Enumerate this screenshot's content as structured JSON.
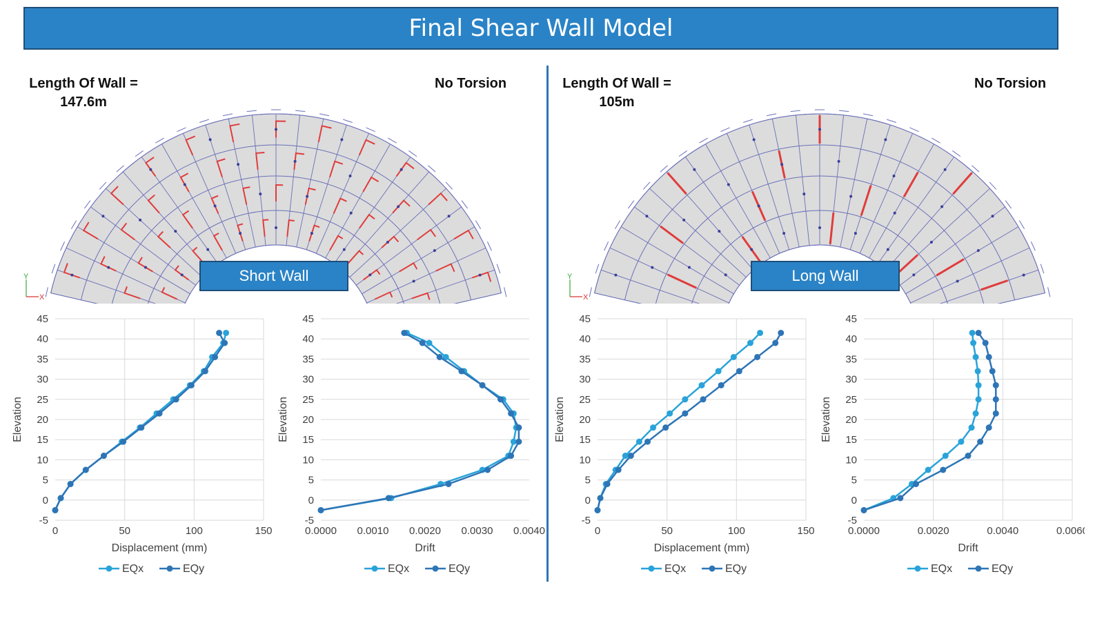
{
  "title": "Final Shear Wall Model",
  "panels": [
    {
      "length_label": "Length Of Wall =",
      "length_value": "147.6m",
      "torsion": "No Torsion",
      "tag": "Short Wall"
    },
    {
      "length_label": "Length Of Wall =",
      "length_value": "105m",
      "torsion": "No Torsion",
      "tag": "Long Wall"
    }
  ],
  "axis_glyphs": {
    "y": "Y",
    "x": "X"
  },
  "colors": {
    "eqx": "#29a3d9",
    "eqy": "#2e75b6",
    "accent": "#2a83c6",
    "plan_fill": "#dcdcdc",
    "plan_line": "#6a6fb8",
    "wall_red": "#e03c3c"
  },
  "chart_data": [
    {
      "type": "line",
      "xlabel": "Displacement (mm)",
      "ylabel": "Elevation",
      "xlim": [
        0,
        150
      ],
      "ylim": [
        -5,
        45
      ],
      "xticks": [
        "0",
        "50",
        "100",
        "150"
      ],
      "xtickvals": [
        0,
        50,
        100,
        150
      ],
      "yticks": [
        "-5",
        "0",
        "5",
        "10",
        "15",
        "20",
        "25",
        "30",
        "35",
        "40",
        "45"
      ],
      "grid": "vertical",
      "legend": "bottom",
      "series": [
        {
          "name": "EQx",
          "x": [
            0,
            4,
            11,
            22,
            35,
            48,
            61,
            73,
            85,
            97,
            107,
            113,
            121,
            123
          ],
          "y": [
            -2.5,
            0.5,
            4,
            7.5,
            11,
            14.5,
            18,
            21.5,
            25,
            28.5,
            32,
            35.5,
            39,
            41.5
          ]
        },
        {
          "name": "EQy",
          "x": [
            0,
            4,
            11,
            22,
            35,
            49,
            62,
            75,
            87,
            98,
            108,
            115,
            122,
            118
          ],
          "y": [
            -2.5,
            0.5,
            4,
            7.5,
            11,
            14.5,
            18,
            21.5,
            25,
            28.5,
            32,
            35.5,
            39,
            41.5
          ]
        }
      ]
    },
    {
      "type": "line",
      "xlabel": "Drift",
      "ylabel": "Elevation",
      "xlim": [
        0,
        0.004
      ],
      "ylim": [
        -5,
        45
      ],
      "xticks": [
        "0.0000",
        "0.0010",
        "0.0020",
        "0.0030",
        "0.0040"
      ],
      "xtickvals": [
        0,
        0.001,
        0.002,
        0.003,
        0.004
      ],
      "yticks": [
        "-5",
        "0",
        "5",
        "10",
        "15",
        "20",
        "25",
        "30",
        "35",
        "40",
        "45"
      ],
      "grid": "none",
      "legend": "bottom",
      "series": [
        {
          "name": "EQx",
          "x": [
            0,
            0.00135,
            0.0023,
            0.0031,
            0.0036,
            0.0037,
            0.00375,
            0.0037,
            0.0035,
            0.0031,
            0.00275,
            0.0024,
            0.00208,
            0.00165
          ],
          "y": [
            -2.5,
            0.5,
            4,
            7.5,
            11,
            14.5,
            18,
            21.5,
            25,
            28.5,
            32,
            35.5,
            39,
            41.5
          ]
        },
        {
          "name": "EQy",
          "x": [
            0,
            0.0013,
            0.00245,
            0.0032,
            0.00365,
            0.0038,
            0.0038,
            0.00365,
            0.00345,
            0.0031,
            0.0027,
            0.00228,
            0.00195,
            0.0016
          ],
          "y": [
            -2.5,
            0.5,
            4,
            7.5,
            11,
            14.5,
            18,
            21.5,
            25,
            28.5,
            32,
            35.5,
            39,
            41.5
          ]
        }
      ]
    },
    {
      "type": "line",
      "xlabel": "Displacement (mm)",
      "ylabel": "Elevation",
      "xlim": [
        0,
        150
      ],
      "ylim": [
        -5,
        45
      ],
      "xticks": [
        "0",
        "50",
        "100",
        "150"
      ],
      "xtickvals": [
        0,
        50,
        100,
        150
      ],
      "yticks": [
        "-5",
        "0",
        "5",
        "10",
        "15",
        "20",
        "25",
        "30",
        "35",
        "40",
        "45"
      ],
      "grid": "vertical",
      "legend": "bottom",
      "series": [
        {
          "name": "EQx",
          "x": [
            0,
            2,
            6,
            13,
            20,
            30,
            40,
            52,
            63,
            75,
            87,
            98,
            110,
            117
          ],
          "y": [
            -2.5,
            0.5,
            4,
            7.5,
            11,
            14.5,
            18,
            21.5,
            25,
            28.5,
            32,
            35.5,
            39,
            41.5
          ]
        },
        {
          "name": "EQy",
          "x": [
            0,
            2,
            7,
            15,
            24,
            36,
            49,
            63,
            76,
            89,
            102,
            115,
            128,
            132
          ],
          "y": [
            -2.5,
            0.5,
            4,
            7.5,
            11,
            14.5,
            18,
            21.5,
            25,
            28.5,
            32,
            35.5,
            39,
            41.5
          ]
        }
      ]
    },
    {
      "type": "line",
      "xlabel": "Drift",
      "ylabel": "Elevation",
      "xlim": [
        0,
        0.006
      ],
      "ylim": [
        -5,
        45
      ],
      "xticks": [
        "0.0000",
        "0.0020",
        "0.0040",
        "0.0060"
      ],
      "xtickvals": [
        0,
        0.002,
        0.004,
        0.006
      ],
      "yticks": [
        "-5",
        "0",
        "5",
        "10",
        "15",
        "20",
        "25",
        "30",
        "35",
        "40",
        "45"
      ],
      "grid": "vertical",
      "legend": "bottom",
      "series": [
        {
          "name": "EQx",
          "x": [
            0,
            0.00085,
            0.00138,
            0.00185,
            0.00235,
            0.0028,
            0.0031,
            0.00322,
            0.0033,
            0.0033,
            0.00328,
            0.00322,
            0.00315,
            0.00312
          ],
          "y": [
            -2.5,
            0.5,
            4,
            7.5,
            11,
            14.5,
            18,
            21.5,
            25,
            28.5,
            32,
            35.5,
            39,
            41.5
          ]
        },
        {
          "name": "EQy",
          "x": [
            0,
            0.00105,
            0.0015,
            0.00228,
            0.003,
            0.00335,
            0.0036,
            0.0038,
            0.0038,
            0.0038,
            0.0037,
            0.0036,
            0.0035,
            0.0033
          ],
          "y": [
            -2.5,
            0.5,
            4,
            7.5,
            11,
            14.5,
            18,
            21.5,
            25,
            28.5,
            32,
            35.5,
            39,
            41.5
          ]
        }
      ]
    }
  ]
}
